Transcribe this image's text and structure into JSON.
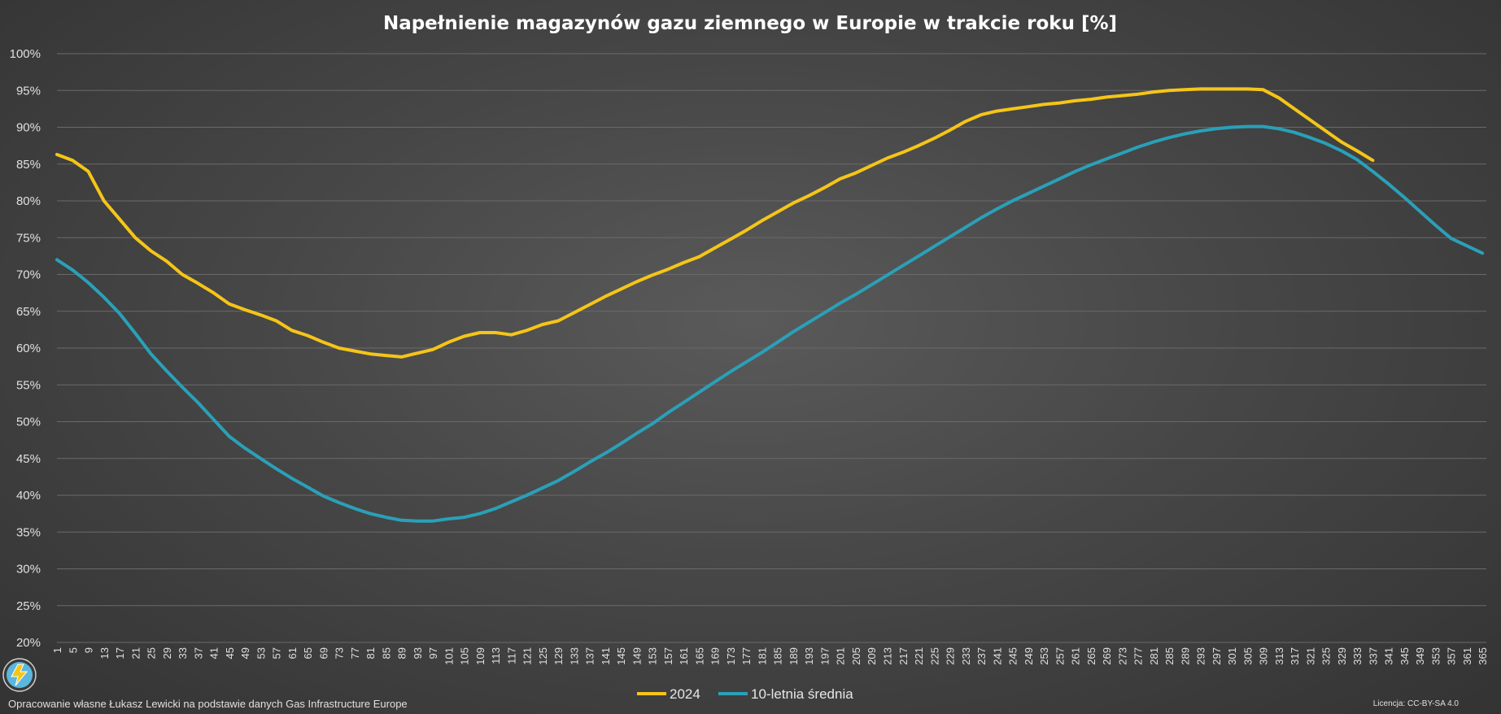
{
  "chart_data": {
    "type": "line",
    "title": "Napełnienie magazynów gazu ziemnego w Europie w trakcie roku [%]",
    "xlabel": "",
    "ylabel": "",
    "xlim": [
      1,
      366
    ],
    "ylim": [
      20,
      100
    ],
    "y_ticks": [
      "20%",
      "25%",
      "30%",
      "35%",
      "40%",
      "45%",
      "50%",
      "55%",
      "60%",
      "65%",
      "70%",
      "75%",
      "80%",
      "85%",
      "90%",
      "95%",
      "100%"
    ],
    "x_ticks": [
      "1",
      "5",
      "9",
      "13",
      "17",
      "21",
      "25",
      "29",
      "33",
      "37",
      "41",
      "45",
      "49",
      "53",
      "57",
      "61",
      "65",
      "69",
      "73",
      "77",
      "81",
      "85",
      "89",
      "93",
      "97",
      "101",
      "105",
      "109",
      "113",
      "117",
      "121",
      "125",
      "129",
      "133",
      "137",
      "141",
      "145",
      "149",
      "153",
      "157",
      "161",
      "165",
      "169",
      "173",
      "177",
      "181",
      "185",
      "189",
      "193",
      "197",
      "201",
      "205",
      "209",
      "213",
      "217",
      "221",
      "225",
      "229",
      "233",
      "237",
      "241",
      "245",
      "249",
      "253",
      "257",
      "261",
      "265",
      "269",
      "273",
      "277",
      "281",
      "285",
      "289",
      "293",
      "297",
      "301",
      "305",
      "309",
      "313",
      "317",
      "321",
      "325",
      "329",
      "333",
      "337",
      "341",
      "345",
      "349",
      "353",
      "357",
      "361",
      "365"
    ],
    "grid": true,
    "legend_position": "bottom-center",
    "series": [
      {
        "name": "2024",
        "color": "#f5c518",
        "x": [
          1,
          5,
          9,
          13,
          17,
          21,
          25,
          29,
          33,
          37,
          41,
          45,
          49,
          53,
          57,
          61,
          65,
          69,
          73,
          77,
          81,
          85,
          89,
          93,
          97,
          101,
          105,
          109,
          113,
          117,
          121,
          125,
          129,
          133,
          137,
          141,
          145,
          149,
          153,
          157,
          161,
          165,
          169,
          173,
          177,
          181,
          185,
          189,
          193,
          197,
          201,
          205,
          209,
          213,
          217,
          221,
          225,
          229,
          233,
          237,
          241,
          245,
          249,
          253,
          257,
          261,
          265,
          269,
          273,
          277,
          281,
          285,
          289,
          293,
          297,
          301,
          305,
          309,
          313,
          317,
          321,
          325,
          329,
          333,
          337
        ],
        "values": [
          86.3,
          85.5,
          84.0,
          80.0,
          77.5,
          75.0,
          73.2,
          71.8,
          70.0,
          68.8,
          67.5,
          66.0,
          65.2,
          64.5,
          63.7,
          62.4,
          61.7,
          60.8,
          60.0,
          59.6,
          59.2,
          59.0,
          58.8,
          59.3,
          59.8,
          60.8,
          61.6,
          62.1,
          62.1,
          61.8,
          62.4,
          63.2,
          63.7,
          64.8,
          65.9,
          67.0,
          68.0,
          69.0,
          69.9,
          70.7,
          71.6,
          72.4,
          73.6,
          74.8,
          76.0,
          77.3,
          78.5,
          79.7,
          80.7,
          81.8,
          83.0,
          83.8,
          84.8,
          85.8,
          86.6,
          87.5,
          88.5,
          89.6,
          90.8,
          91.7,
          92.2,
          92.5,
          92.8,
          93.1,
          93.3,
          93.6,
          93.8,
          94.1,
          94.3,
          94.5,
          94.8,
          95.0,
          95.1,
          95.2,
          95.2,
          95.2,
          95.2,
          95.1,
          94.0,
          92.5,
          91.0,
          89.5,
          88.0,
          86.8,
          85.5
        ]
      },
      {
        "name": "10-letnia średnia",
        "color": "#2aa0b8",
        "x": [
          1,
          5,
          9,
          13,
          17,
          21,
          25,
          29,
          33,
          37,
          41,
          45,
          49,
          53,
          57,
          61,
          65,
          69,
          73,
          77,
          81,
          85,
          89,
          93,
          97,
          101,
          105,
          109,
          113,
          117,
          121,
          125,
          129,
          133,
          137,
          141,
          145,
          149,
          153,
          157,
          161,
          165,
          169,
          173,
          177,
          181,
          185,
          189,
          193,
          197,
          201,
          205,
          209,
          213,
          217,
          221,
          225,
          229,
          233,
          237,
          241,
          245,
          249,
          253,
          257,
          261,
          265,
          269,
          273,
          277,
          281,
          285,
          289,
          293,
          297,
          301,
          305,
          309,
          313,
          317,
          321,
          325,
          329,
          333,
          337,
          341,
          345,
          349,
          353,
          357,
          361,
          365
        ],
        "values": [
          72.0,
          70.6,
          68.9,
          66.9,
          64.7,
          62.0,
          59.2,
          56.9,
          54.7,
          52.6,
          50.3,
          48.0,
          46.4,
          45.0,
          43.6,
          42.3,
          41.1,
          39.9,
          39.0,
          38.2,
          37.5,
          37.0,
          36.6,
          36.5,
          36.5,
          36.8,
          37.0,
          37.5,
          38.2,
          39.1,
          40.0,
          41.0,
          42.0,
          43.2,
          44.5,
          45.7,
          47.0,
          48.4,
          49.7,
          51.2,
          52.6,
          54.0,
          55.4,
          56.8,
          58.1,
          59.4,
          60.8,
          62.2,
          63.5,
          64.8,
          66.1,
          67.3,
          68.6,
          69.9,
          71.2,
          72.5,
          73.8,
          75.1,
          76.4,
          77.7,
          78.9,
          80.0,
          81.0,
          82.0,
          83.0,
          84.0,
          84.9,
          85.7,
          86.5,
          87.3,
          88.0,
          88.6,
          89.1,
          89.5,
          89.8,
          90.0,
          90.1,
          90.1,
          89.8,
          89.3,
          88.6,
          87.8,
          86.8,
          85.6,
          84.0,
          82.3,
          80.5,
          78.6,
          76.7,
          74.9,
          73.9,
          72.9
        ]
      }
    ]
  },
  "footer": {
    "source": "Opracowanie własne Łukasz Lewicki na podstawie danych Gas Infrastructure Europe",
    "license": "Licencja: CC-BY-SA 4.0"
  }
}
